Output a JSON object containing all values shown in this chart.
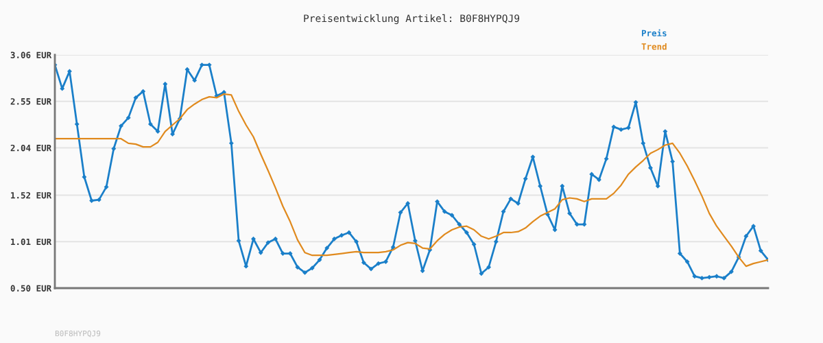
{
  "chart_data": {
    "type": "line",
    "title": "Preisentwicklung Artikel: B0F8HYPQJ9",
    "categories": [
      null,
      null,
      null,
      null,
      null,
      null,
      null,
      null,
      null,
      null,
      null,
      null,
      null,
      null,
      null,
      null,
      null,
      null,
      null,
      null,
      null,
      null,
      null,
      null,
      null,
      null,
      null,
      null,
      null,
      null,
      null,
      null,
      null,
      null,
      null,
      null,
      null,
      null,
      null,
      null,
      null,
      null,
      null,
      null,
      null,
      null,
      null,
      null,
      null,
      null,
      null,
      null,
      null,
      null,
      null,
      null,
      null,
      null,
      null,
      null,
      null,
      null,
      null,
      null,
      null,
      null,
      null,
      null,
      null,
      null,
      null,
      null,
      null,
      null,
      null,
      null,
      null,
      null,
      null,
      null,
      null,
      null,
      null,
      null,
      null,
      null,
      null,
      null,
      null,
      null,
      null,
      null,
      null,
      null,
      null,
      null,
      null,
      null
    ],
    "series": [
      {
        "name": "Preis",
        "color": "#1a7fc9",
        "marker": "diamond",
        "values": [
          2.95,
          2.69,
          2.88,
          2.3,
          1.72,
          1.46,
          1.47,
          1.61,
          2.03,
          2.28,
          2.37,
          2.59,
          2.66,
          2.3,
          2.22,
          2.74,
          2.19,
          2.36,
          2.9,
          2.78,
          2.95,
          2.95,
          2.61,
          2.65,
          2.09,
          1.02,
          0.74,
          1.04,
          0.89,
          1.0,
          1.04,
          0.88,
          0.88,
          0.73,
          0.67,
          0.72,
          0.81,
          0.94,
          1.04,
          1.08,
          1.11,
          1.01,
          0.78,
          0.71,
          0.77,
          0.79,
          0.95,
          1.33,
          1.43,
          1.02,
          0.69,
          0.92,
          1.45,
          1.34,
          1.3,
          1.2,
          1.11,
          0.98,
          0.66,
          0.73,
          1.01,
          1.34,
          1.48,
          1.43,
          1.7,
          1.94,
          1.62,
          1.31,
          1.14,
          1.62,
          1.32,
          1.2,
          1.2,
          1.75,
          1.69,
          1.92,
          2.27,
          2.24,
          2.26,
          2.54,
          2.09,
          1.82,
          1.62,
          2.22,
          1.89,
          0.88,
          0.79,
          0.63,
          0.61,
          0.62,
          0.63,
          0.61,
          0.68,
          0.84,
          1.07,
          1.18,
          0.91,
          0.81
        ]
      },
      {
        "name": "Trend",
        "color": "#e08a1e",
        "marker": "none",
        "values": [
          2.14,
          2.14,
          2.14,
          2.14,
          2.14,
          2.14,
          2.14,
          2.14,
          2.14,
          2.14,
          2.09,
          2.08,
          2.05,
          2.05,
          2.1,
          2.22,
          2.29,
          2.36,
          2.46,
          2.52,
          2.57,
          2.6,
          2.59,
          2.63,
          2.62,
          2.44,
          2.29,
          2.16,
          1.97,
          1.79,
          1.6,
          1.4,
          1.23,
          1.03,
          0.89,
          0.86,
          0.86,
          0.86,
          0.87,
          0.88,
          0.89,
          0.9,
          0.89,
          0.89,
          0.89,
          0.9,
          0.92,
          0.97,
          1.0,
          0.99,
          0.94,
          0.93,
          1.02,
          1.09,
          1.14,
          1.17,
          1.18,
          1.14,
          1.07,
          1.04,
          1.07,
          1.11,
          1.11,
          1.12,
          1.16,
          1.23,
          1.29,
          1.33,
          1.37,
          1.47,
          1.49,
          1.48,
          1.45,
          1.48,
          1.48,
          1.48,
          1.54,
          1.63,
          1.75,
          1.83,
          1.9,
          1.98,
          2.02,
          2.07,
          2.09,
          1.98,
          1.84,
          1.68,
          1.51,
          1.32,
          1.18,
          1.07,
          0.96,
          0.84,
          0.74,
          0.77,
          0.79,
          0.81
        ]
      }
    ],
    "ylim": [
      0.5,
      3.06
    ],
    "yticks": [
      {
        "value": 0.5,
        "label": "0.50 EUR"
      },
      {
        "value": 1.01,
        "label": "1.01 EUR"
      },
      {
        "value": 1.52,
        "label": "1.52 EUR"
      },
      {
        "value": 2.04,
        "label": "2.04 EUR"
      },
      {
        "value": 2.55,
        "label": "2.55 EUR"
      },
      {
        "value": 3.06,
        "label": "3.06 EUR"
      }
    ],
    "grid": "y",
    "legend": "top right",
    "tick_labels": "y",
    "annotations": [
      "B0F8HYPQJ9"
    ]
  }
}
